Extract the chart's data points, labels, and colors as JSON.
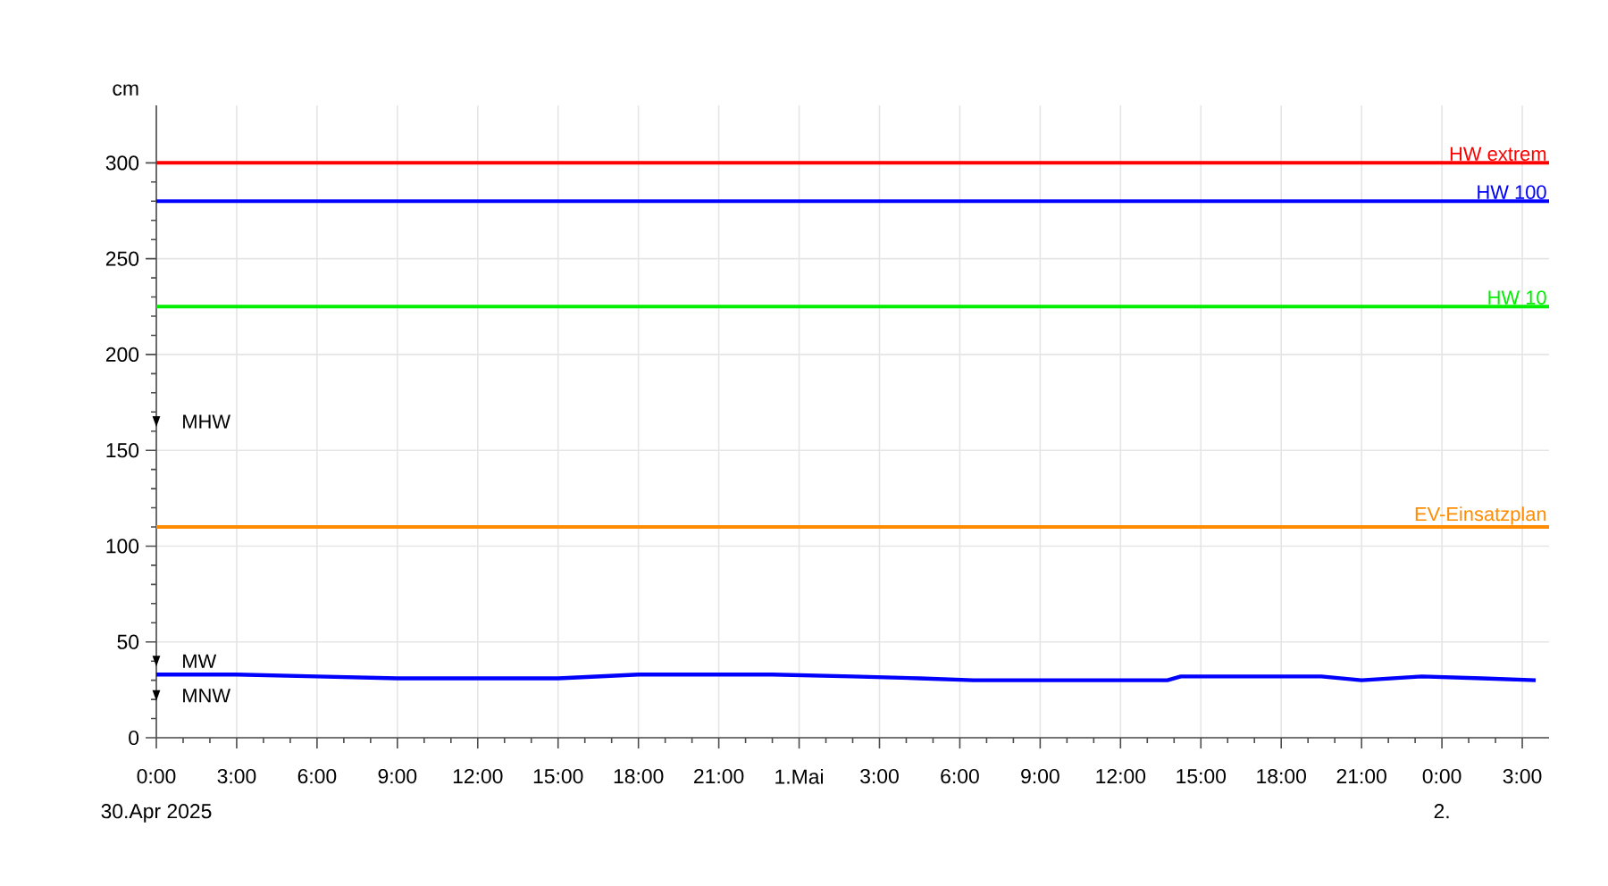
{
  "chart_data": {
    "type": "line",
    "ylabel": "cm",
    "xlim": [
      "2025-04-30T00:00",
      "2025-05-02T04:00"
    ],
    "ylim": [
      0,
      330
    ],
    "xticks": [
      {
        "value": "2025-04-30T00:00",
        "label": "0:00"
      },
      {
        "value": "2025-04-30T03:00",
        "label": "3:00"
      },
      {
        "value": "2025-04-30T06:00",
        "label": "6:00"
      },
      {
        "value": "2025-04-30T09:00",
        "label": "9:00"
      },
      {
        "value": "2025-04-30T12:00",
        "label": "12:00"
      },
      {
        "value": "2025-04-30T15:00",
        "label": "15:00"
      },
      {
        "value": "2025-04-30T18:00",
        "label": "18:00"
      },
      {
        "value": "2025-04-30T21:00",
        "label": "21:00"
      },
      {
        "value": "2025-05-01T00:00",
        "label": "1.Mai"
      },
      {
        "value": "2025-05-01T03:00",
        "label": "3:00"
      },
      {
        "value": "2025-05-01T06:00",
        "label": "6:00"
      },
      {
        "value": "2025-05-01T09:00",
        "label": "9:00"
      },
      {
        "value": "2025-05-01T12:00",
        "label": "12:00"
      },
      {
        "value": "2025-05-01T15:00",
        "label": "15:00"
      },
      {
        "value": "2025-05-01T18:00",
        "label": "18:00"
      },
      {
        "value": "2025-05-01T21:00",
        "label": "21:00"
      },
      {
        "value": "2025-05-02T00:00",
        "label": "0:00"
      },
      {
        "value": "2025-05-02T03:00",
        "label": "3:00"
      }
    ],
    "yticks": [
      0,
      50,
      100,
      150,
      200,
      250,
      300
    ],
    "grid": true,
    "line_style": "solid",
    "marker": "none",
    "series": [
      {
        "color": "#0000ff",
        "x": [
          "2025-04-30T00:00",
          "2025-04-30T03:00",
          "2025-04-30T06:00",
          "2025-04-30T09:00",
          "2025-04-30T12:00",
          "2025-04-30T15:00",
          "2025-04-30T18:00",
          "2025-04-30T21:00",
          "2025-04-30T23:00",
          "2025-05-01T02:00",
          "2025-05-01T04:30",
          "2025-05-01T06:30",
          "2025-05-01T08:45",
          "2025-05-01T11:00",
          "2025-05-01T13:45",
          "2025-05-01T14:15",
          "2025-05-01T17:15",
          "2025-05-01T19:30",
          "2025-05-01T21:00",
          "2025-05-01T23:15",
          "2025-05-02T01:30",
          "2025-05-02T03:30"
        ],
        "values": [
          33,
          33,
          32,
          31,
          31,
          31,
          33,
          33,
          33,
          32,
          31,
          30,
          30,
          30,
          30,
          32,
          32,
          32,
          30,
          32,
          31,
          30
        ]
      }
    ],
    "ref_lines": [
      {
        "axis": "y",
        "value": 300,
        "label": "HW extrem",
        "color": "#ff0000"
      },
      {
        "axis": "y",
        "value": 280,
        "label": "HW 100",
        "color": "#0000ff"
      },
      {
        "axis": "y",
        "value": 225,
        "label": "HW 10",
        "color": "#00ee00"
      },
      {
        "axis": "y",
        "value": 110,
        "label": "EV-Einsatzplan",
        "color": "#ff8c00"
      }
    ],
    "annotations": [
      {
        "text": "MHW",
        "x": "2025-04-30T00:00",
        "y": 165
      },
      {
        "text": "MW",
        "x": "2025-04-30T00:00",
        "y": 40
      },
      {
        "text": "MNW",
        "x": "2025-04-30T00:00",
        "y": 22
      },
      "30.Apr 2025",
      "2."
    ]
  }
}
